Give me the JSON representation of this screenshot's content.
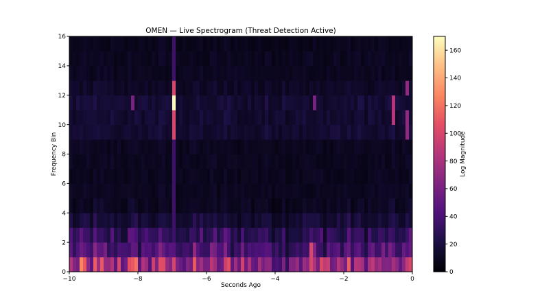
{
  "chart_data": {
    "type": "heatmap",
    "title": "OMEN — Live Spectrogram (Threat Detection Active)",
    "xlabel": "Seconds Ago",
    "ylabel": "Frequency Bin",
    "xlim": [
      -10,
      0
    ],
    "ylim": [
      0,
      16
    ],
    "x_ticks": [
      -10,
      -8,
      -6,
      -4,
      -2,
      0
    ],
    "x_tick_labels": [
      "−10",
      "−8",
      "−6",
      "−4",
      "−2",
      "0"
    ],
    "y_ticks": [
      0,
      2,
      4,
      6,
      8,
      10,
      12,
      14,
      16
    ],
    "y_tick_labels": [
      "0",
      "2",
      "4",
      "6",
      "8",
      "10",
      "12",
      "14",
      "16"
    ],
    "colormap": "magma",
    "colorbar": {
      "label": "Log Magnitude",
      "range": [
        0,
        170
      ],
      "ticks": [
        0,
        20,
        40,
        60,
        80,
        100,
        120,
        140,
        160
      ],
      "tick_labels": [
        "0",
        "20",
        "40",
        "60",
        "80",
        "100",
        "120",
        "140",
        "160"
      ]
    },
    "n_frequency_bins": 16,
    "n_time_bins": 100,
    "frequency_bin_baseline": [
      70,
      40,
      30,
      17,
      10,
      8,
      8,
      8,
      8,
      13,
      13,
      14,
      10,
      8,
      8,
      7
    ],
    "highlights": [
      {
        "time_s": -7.0,
        "frequency_bins": [
          11
        ],
        "value": 168
      },
      {
        "time_s": -7.0,
        "frequency_bins": [
          9,
          10,
          12
        ],
        "value": 100
      },
      {
        "time_s": -7.0,
        "frequency_bins": [
          2,
          3,
          4,
          5,
          6,
          7,
          8,
          13,
          14,
          15
        ],
        "value": 35
      },
      {
        "time_s": -0.6,
        "frequency_bins": [
          10,
          11
        ],
        "value": 85
      },
      {
        "time_s": -0.2,
        "frequency_bins": [
          9,
          10,
          12
        ],
        "value": 70
      },
      {
        "time_s": -2.9,
        "frequency_bins": [
          11
        ],
        "value": 60
      },
      {
        "time_s": -8.2,
        "frequency_bins": [
          11
        ],
        "value": 60
      },
      {
        "time_s": -9.6,
        "frequency_bins": [
          0
        ],
        "value": 110
      },
      {
        "time_s": -8.6,
        "frequency_bins": [
          0
        ],
        "value": 100
      },
      {
        "time_s": -3.0,
        "frequency_bins": [
          0,
          1
        ],
        "value": 100
      },
      {
        "time_s": -7.6,
        "frequency_bins": [
          0
        ],
        "value": 95
      },
      {
        "time_s": -2.6,
        "frequency_bins": [
          0
        ],
        "value": 90
      }
    ]
  }
}
